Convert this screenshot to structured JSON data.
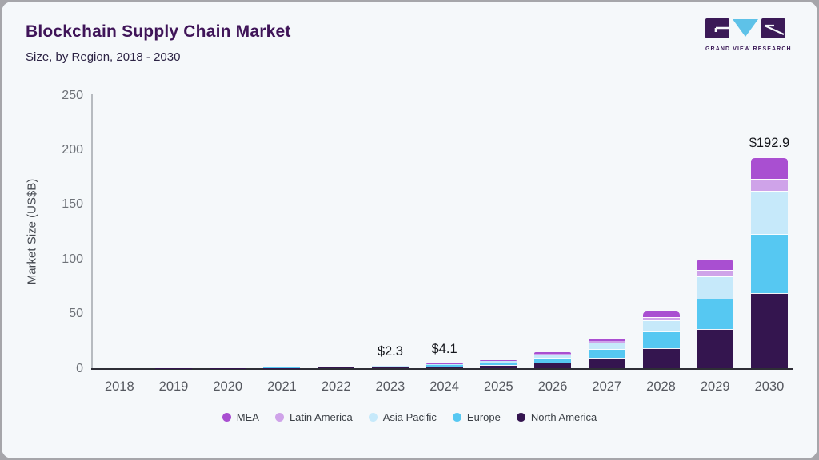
{
  "page": {
    "outer_background": "#a6a6aa",
    "card_background": "#f5f8fa"
  },
  "header": {
    "title": "Blockchain Supply Chain Market",
    "subtitle": "Size, by Region, 2018 - 2030",
    "title_color": "#3f1458"
  },
  "branding": {
    "logo_text": "GRAND VIEW RESEARCH",
    "block_color": "#3b1a57",
    "triangle_color": "#5ec2e8"
  },
  "chart_data": {
    "type": "bar",
    "stacked": true,
    "title": "Blockchain Supply Chain Market",
    "subtitle": "Size, by Region, 2018 - 2030",
    "xlabel": "",
    "ylabel": "Market Size (US$B)",
    "ylim": [
      0,
      250
    ],
    "yticks": [
      0,
      50,
      100,
      150,
      200,
      250
    ],
    "grid": false,
    "legend_position": "bottom",
    "categories": [
      "2018",
      "2019",
      "2020",
      "2021",
      "2022",
      "2023",
      "2024",
      "2025",
      "2026",
      "2027",
      "2028",
      "2029",
      "2030"
    ],
    "series": [
      {
        "name": "MEA",
        "color": "#a94fd1",
        "values": [
          0.01,
          0.02,
          0.03,
          0.06,
          0.12,
          0.24,
          0.42,
          0.8,
          1.5,
          2.8,
          5.4,
          10.3,
          19.9
        ]
      },
      {
        "name": "Latin America",
        "color": "#cfa3e9",
        "values": [
          0.01,
          0.01,
          0.02,
          0.03,
          0.07,
          0.13,
          0.23,
          0.4,
          0.8,
          1.6,
          3.0,
          5.7,
          11.0
        ]
      },
      {
        "name": "Asia Pacific",
        "color": "#c6e9fa",
        "values": [
          0.02,
          0.04,
          0.06,
          0.12,
          0.25,
          0.47,
          0.84,
          1.6,
          3.0,
          5.6,
          10.8,
          20.5,
          39.5
        ]
      },
      {
        "name": "Europe",
        "color": "#56c8f2",
        "values": [
          0.03,
          0.06,
          0.08,
          0.17,
          0.34,
          0.64,
          1.15,
          2.1,
          4.1,
          7.7,
          14.7,
          28.0,
          54.0
        ]
      },
      {
        "name": "North America",
        "color": "#34154f",
        "values": [
          0.04,
          0.07,
          0.11,
          0.21,
          0.43,
          0.82,
          1.46,
          2.7,
          5.2,
          9.8,
          18.6,
          35.5,
          68.5
        ]
      }
    ],
    "stack_order_bottom_to_top": [
      "North America",
      "Europe",
      "Asia Pacific",
      "Latin America",
      "MEA"
    ],
    "totals": {
      "2023": 2.3,
      "2024": 4.1,
      "2030": 192.9
    },
    "annotations": [
      {
        "category": "2023",
        "label": "$2.3"
      },
      {
        "category": "2024",
        "label": "$4.1"
      },
      {
        "category": "2030",
        "label": "$192.9"
      }
    ]
  }
}
